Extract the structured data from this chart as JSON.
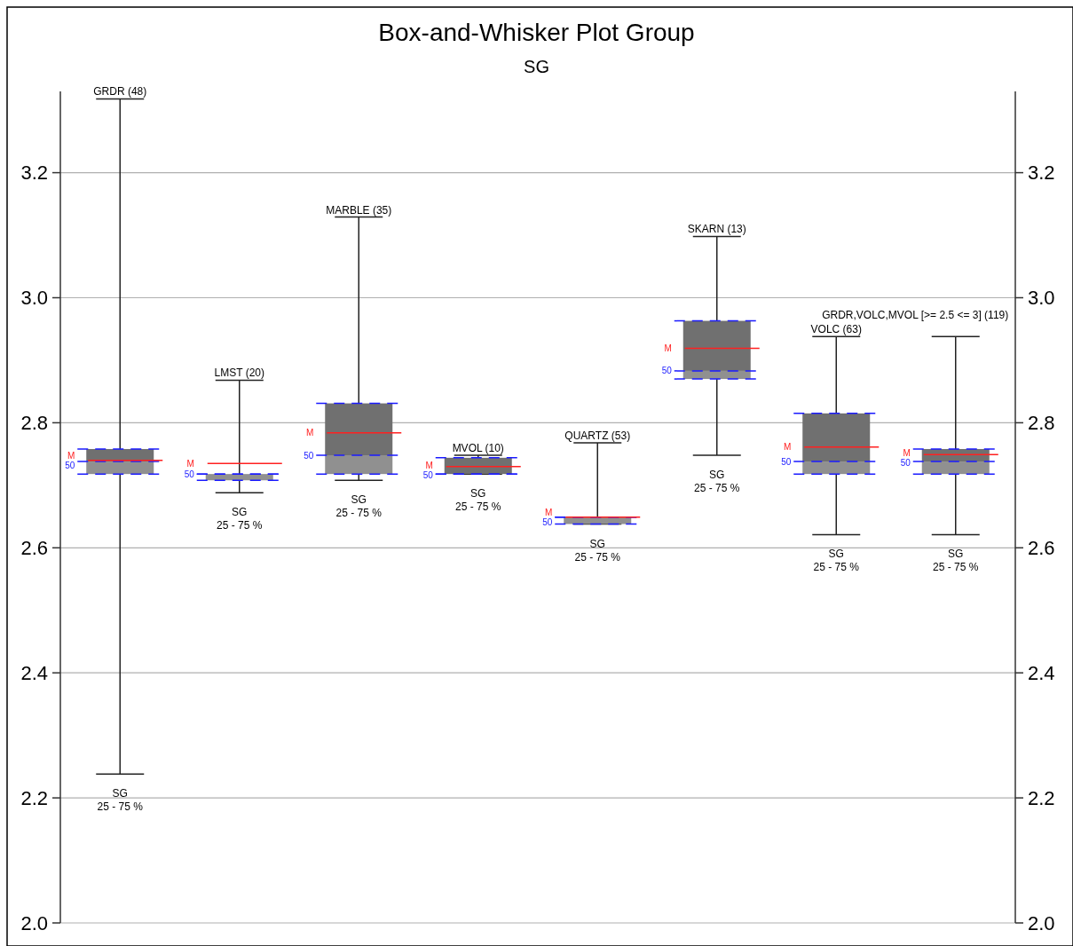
{
  "chart_data": {
    "type": "box",
    "title": "Box-and-Whisker Plot Group",
    "subtitle": "SG",
    "categories": [
      "GRDR (48)",
      "LMST (20)",
      "MARBLE (35)",
      "MVOL (10)",
      "QUARTZ (53)",
      "SKARN (13)",
      "VOLC (63)",
      "GRDR,VOLC,MVOL [>= 2.5 <= 3] (119)"
    ],
    "boxes": [
      {
        "low": 2.238,
        "q1": 2.718,
        "median": 2.738,
        "q3": 2.758,
        "high": 3.318,
        "mean": 2.74
      },
      {
        "low": 2.688,
        "q1": 2.708,
        "median": 2.718,
        "q3": 2.718,
        "high": 2.868,
        "mean": 2.735
      },
      {
        "low": 2.708,
        "q1": 2.718,
        "median": 2.748,
        "q3": 2.831,
        "high": 3.129,
        "mean": 2.784
      },
      {
        "low": 2.718,
        "q1": 2.718,
        "median": 2.718,
        "q3": 2.744,
        "high": 2.748,
        "mean": 2.73
      },
      {
        "low": 2.638,
        "q1": 2.638,
        "median": 2.649,
        "q3": 2.649,
        "high": 2.768,
        "mean": 2.649
      },
      {
        "low": 2.748,
        "q1": 2.87,
        "median": 2.883,
        "q3": 2.963,
        "high": 3.098,
        "mean": 2.919
      },
      {
        "low": 2.621,
        "q1": 2.718,
        "median": 2.738,
        "q3": 2.815,
        "high": 2.938,
        "mean": 2.761
      },
      {
        "low": 2.621,
        "q1": 2.718,
        "median": 2.738,
        "q3": 2.758,
        "high": 2.938,
        "mean": 2.749
      }
    ],
    "ylim": [
      2.0,
      3.33
    ],
    "yticks": [
      {
        "value": 2.0,
        "label": "2.0"
      },
      {
        "value": 2.2,
        "label": "2.2"
      },
      {
        "value": 2.4,
        "label": "2.4"
      },
      {
        "value": 2.6,
        "label": "2.6"
      },
      {
        "value": 2.8,
        "label": "2.8"
      },
      {
        "value": 3.0,
        "label": "3.0"
      },
      {
        "value": 3.2,
        "label": "3.2"
      }
    ],
    "y2lim": [
      2.0,
      3.33
    ],
    "y2ticks": [
      {
        "value": 2.0,
        "label": "2.0"
      },
      {
        "value": 2.2,
        "label": "2.2"
      },
      {
        "value": 2.4,
        "label": "2.4"
      },
      {
        "value": 2.6,
        "label": "2.6"
      },
      {
        "value": 2.8,
        "label": "2.8"
      },
      {
        "value": 3.0,
        "label": "3.0"
      },
      {
        "value": 3.2,
        "label": "3.2"
      }
    ],
    "grid": "y",
    "tick_labels": "y",
    "annotations": [
      {
        "text": "SG",
        "x": "GRDR (48)",
        "y": 2.238
      },
      {
        "text": "25 - 75 %",
        "x": "GRDR (48)",
        "y": 2.238
      },
      {
        "text": "SG",
        "x": "LMST (20)",
        "y": 2.688
      },
      {
        "text": "25 - 75 %",
        "x": "LMST (20)",
        "y": 2.688
      },
      {
        "text": "SG",
        "x": "MARBLE (35)",
        "y": 2.708
      },
      {
        "text": "25 - 75 %",
        "x": "MARBLE (35)",
        "y": 2.708
      },
      {
        "text": "SG",
        "x": "MVOL (10)",
        "y": 2.718
      },
      {
        "text": "25 - 75 %",
        "x": "MVOL (10)",
        "y": 2.718
      },
      {
        "text": "SG",
        "x": "QUARTZ (53)",
        "y": 2.638
      },
      {
        "text": "25 - 75 %",
        "x": "QUARTZ (53)",
        "y": 2.638
      },
      {
        "text": "SG",
        "x": "SKARN (13)",
        "y": 2.748
      },
      {
        "text": "25 - 75 %",
        "x": "SKARN (13)",
        "y": 2.748
      },
      {
        "text": "SG",
        "x": "VOLC (63)",
        "y": 2.621
      },
      {
        "text": "25 - 75 %",
        "x": "VOLC (63)",
        "y": 2.621
      },
      {
        "text": "SG",
        "x": "GRDR,VOLC,MVOL [>= 2.5 <= 3] (119)",
        "y": 2.621
      },
      {
        "text": "25 - 75 %",
        "x": "GRDR,VOLC,MVOL [>= 2.5 <= 3] (119)",
        "y": 2.621
      },
      "M",
      "50"
    ]
  }
}
